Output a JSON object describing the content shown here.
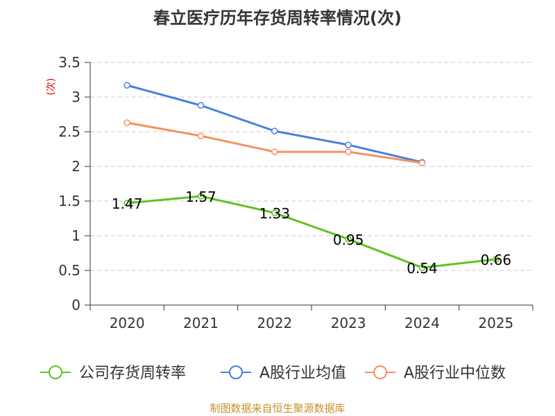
{
  "chart_data": {
    "type": "line",
    "title": "春立医疗历年存货周转率情况(次)",
    "ylabel": "(次)",
    "xlabel": "",
    "categories": [
      "2020",
      "2021",
      "2022",
      "2023",
      "2024",
      "2025"
    ],
    "ylim": [
      0,
      3.5
    ],
    "yticks": [
      "0",
      "0.5",
      "1",
      "1.5",
      "2",
      "2.5",
      "3",
      "3.5"
    ],
    "ytick_values": [
      0,
      0.5,
      1,
      1.5,
      2,
      2.5,
      3,
      3.5
    ],
    "grid": true,
    "legend_position": "bottom",
    "series": [
      {
        "name": "公司存货周转率",
        "color": "#5cc320",
        "values": [
          1.47,
          1.57,
          1.33,
          0.95,
          0.54,
          0.66
        ],
        "labels": [
          "1.47",
          "1.57",
          "1.33",
          "0.95",
          "0.54",
          "0.66"
        ]
      },
      {
        "name": "A股行业均值",
        "color": "#4a7fdc",
        "values": [
          3.17,
          2.88,
          2.51,
          2.31,
          2.06,
          null
        ]
      },
      {
        "name": "A股行业中位数",
        "color": "#f59160",
        "values": [
          2.63,
          2.44,
          2.21,
          2.21,
          2.05,
          null
        ]
      }
    ]
  },
  "source": "制图数据来自恒生聚源数据库"
}
